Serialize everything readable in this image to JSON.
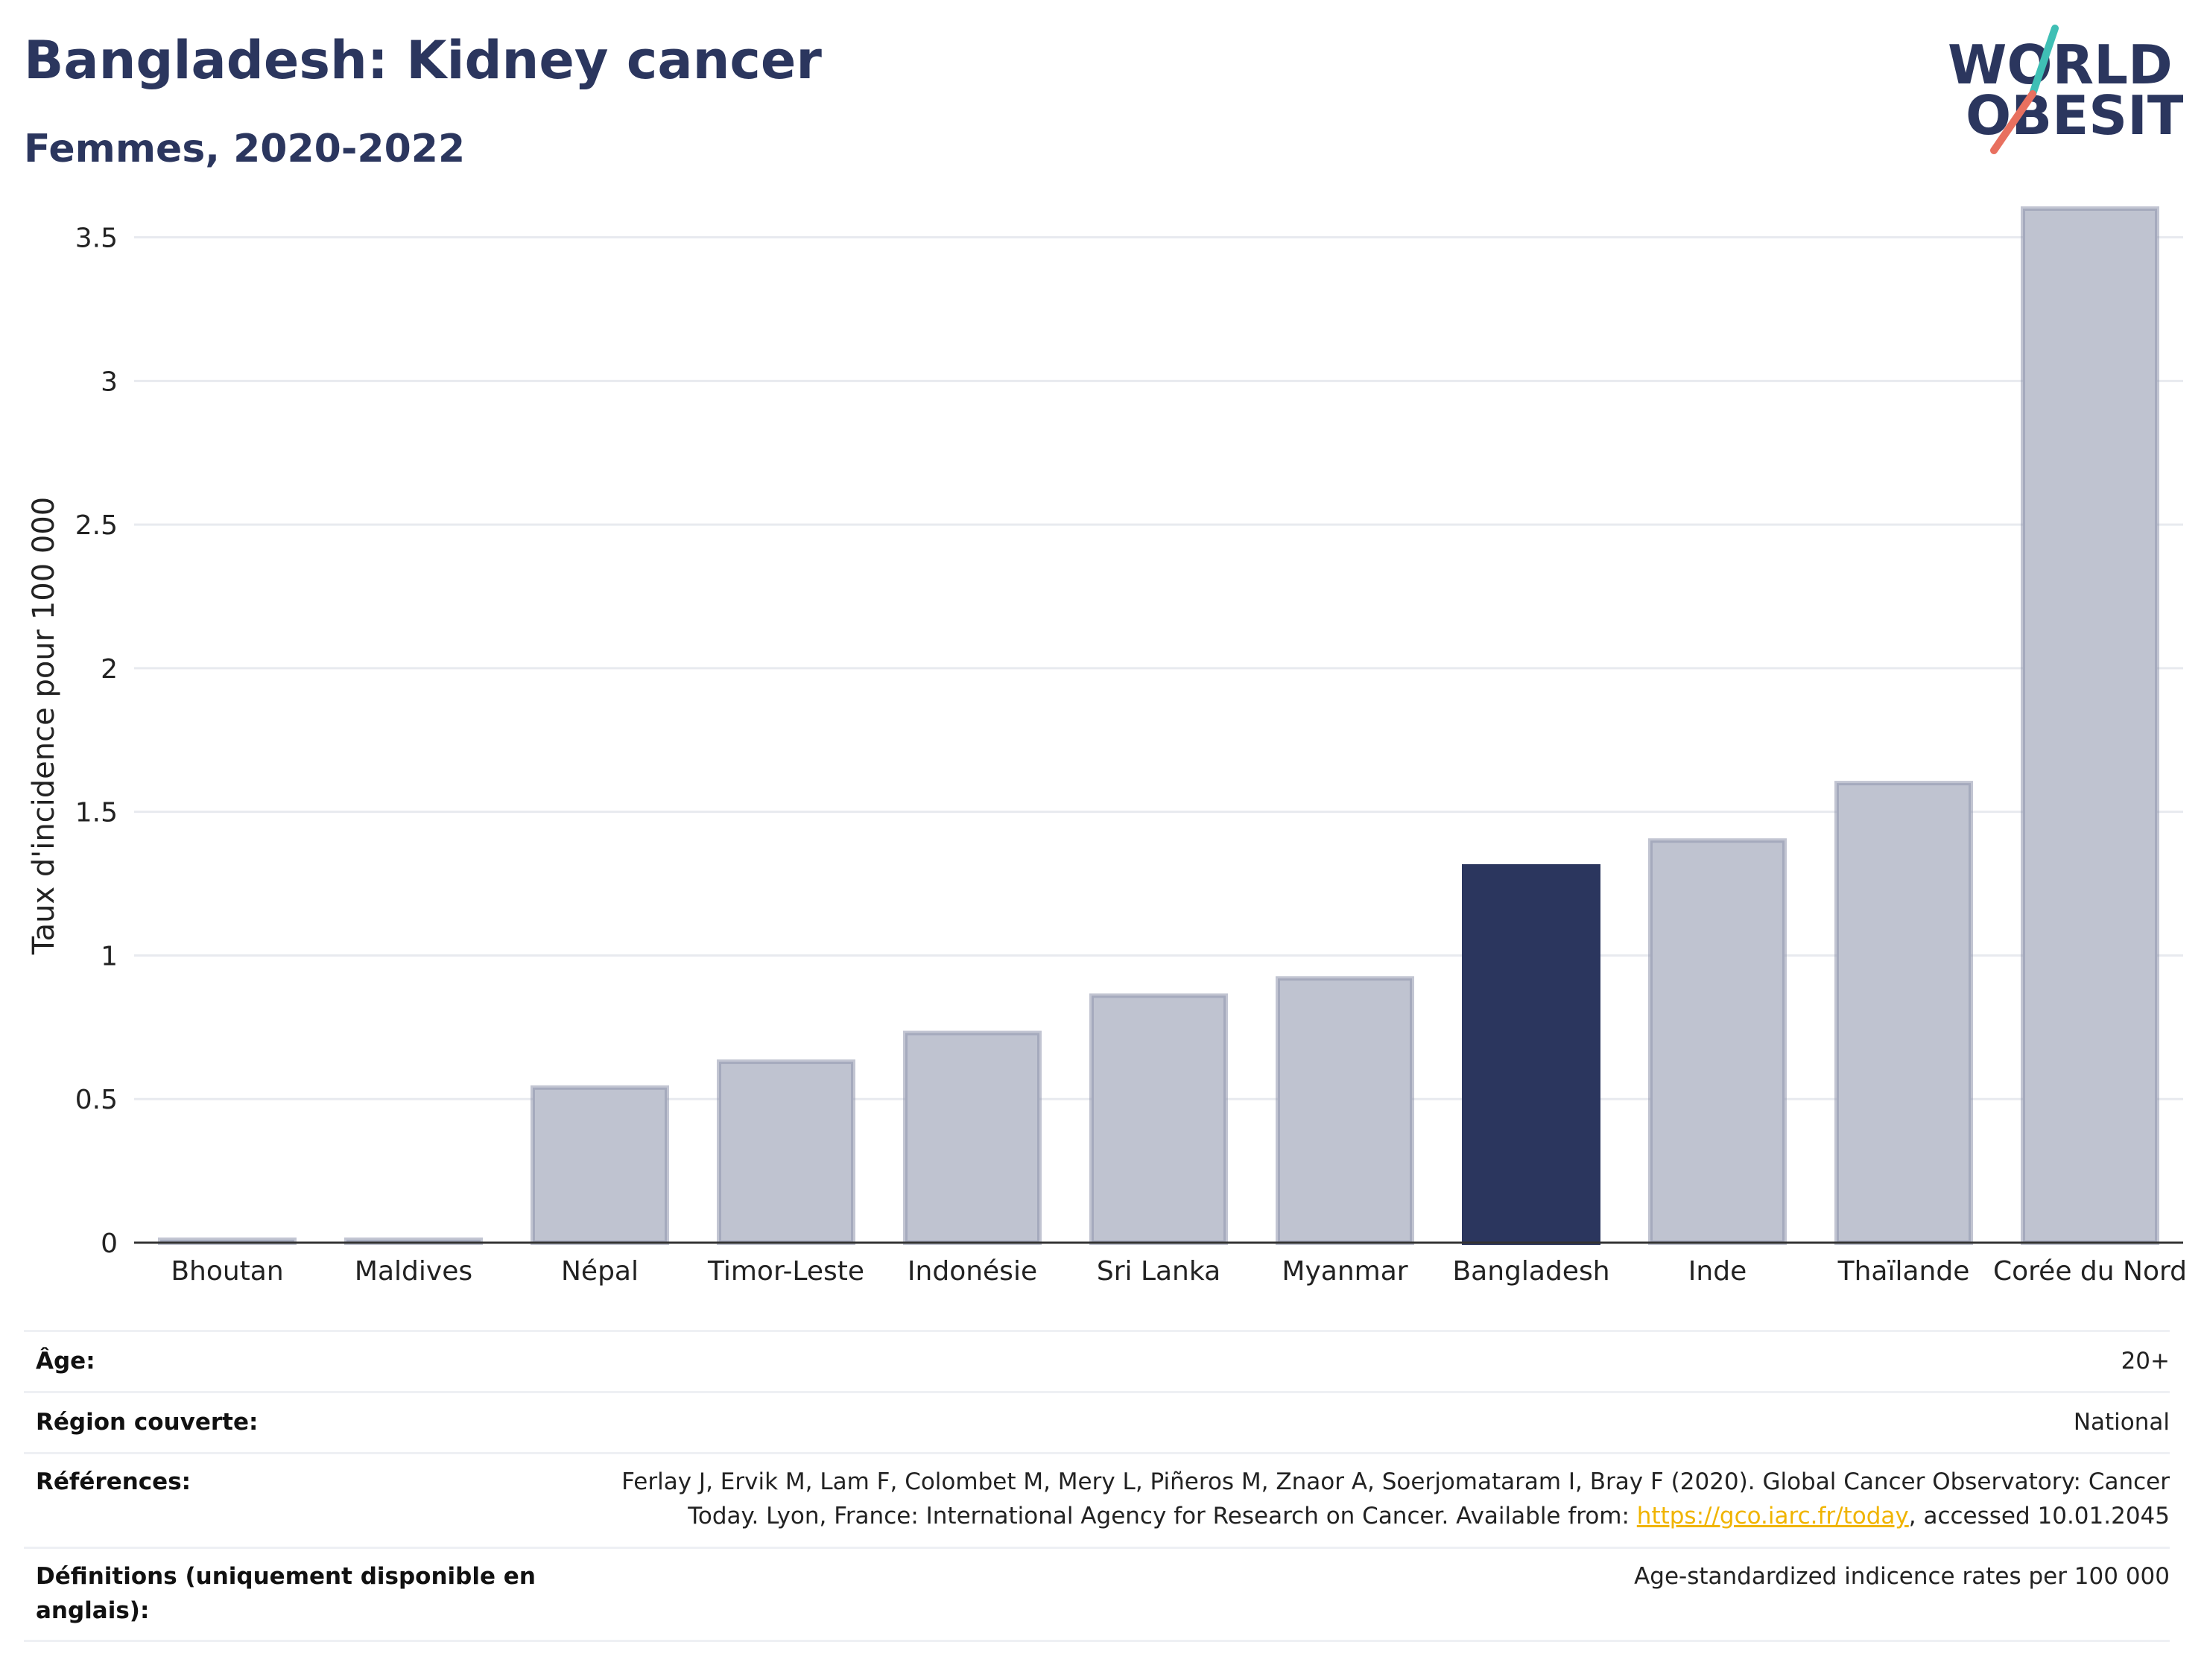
{
  "header": {
    "title": "Bangladesh: Kidney cancer",
    "subtitle": "Femmes, 2020-2022"
  },
  "logo": {
    "line1": "WORLD",
    "line2": "OBESITY"
  },
  "colors": {
    "highlight": "#2b365e",
    "bar_fill": "#bfc3d0",
    "bar_stroke": "#8f95ad",
    "grid": "#e8eaef",
    "title": "#2b365e",
    "link": "#f0b400",
    "logo_teal": "#3fbfb5",
    "logo_coral": "#e8705f"
  },
  "chart_data": {
    "type": "bar",
    "title": "Bangladesh: Kidney cancer",
    "subtitle": "Femmes, 2020-2022",
    "ylabel": "Taux d'incidence pour 100 000",
    "xlabel": "",
    "ylim": [
      0,
      3.6
    ],
    "yticks": [
      0,
      0.5,
      1,
      1.5,
      2,
      2.5,
      3,
      3.5
    ],
    "ytick_labels": [
      "0",
      "0.5",
      "1",
      "1.5",
      "2",
      "2.5",
      "3",
      "3.5"
    ],
    "grid": true,
    "highlight": "Bangladesh",
    "categories": [
      "Bhoutan",
      "Maldives",
      "Népal",
      "Timor-Leste",
      "Indonésie",
      "Sri Lanka",
      "Myanmar",
      "Bangladesh",
      "Inde",
      "Thaïlande",
      "Corée du Nord"
    ],
    "values": [
      0.01,
      0.01,
      0.54,
      0.63,
      0.73,
      0.86,
      0.92,
      1.31,
      1.4,
      1.6,
      3.6
    ]
  },
  "meta": {
    "age_label": "Âge:",
    "age_value": "20+",
    "region_label": "Région couverte:",
    "region_value": "National",
    "ref_label": "Références:",
    "ref_line1": "Ferlay J, Ervik M, Lam F, Colombet M, Mery L, Piñeros M, Znaor A, Soerjomataram I, Bray F (2020). Global Cancer Observatory: Cancer",
    "ref_line2_pre": "Today. Lyon, France: International Agency for Research on Cancer. Available from: ",
    "ref_link": "https://gco.iarc.fr/today",
    "ref_line2_post": ", accessed 10.01.2045",
    "def_label": "Définitions (uniquement disponible en anglais):",
    "def_value": "Age-standardized indicence rates per 100 000"
  }
}
